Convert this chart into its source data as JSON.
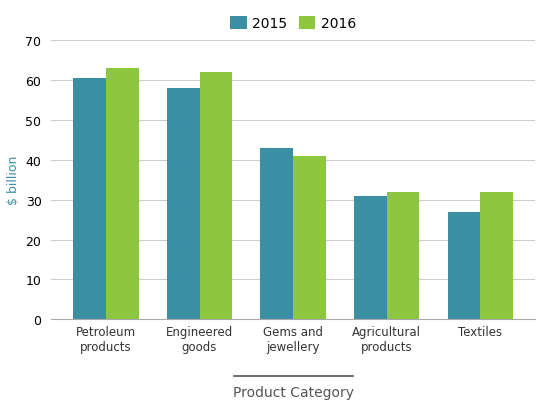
{
  "categories": [
    "Petroleum\nproducts",
    "Engineered\ngoods",
    "Gems and\njewellery",
    "Agricultural\nproducts",
    "Textiles"
  ],
  "values_2015": [
    60.5,
    58,
    43,
    31,
    27
  ],
  "values_2016": [
    63,
    62,
    41,
    32,
    32
  ],
  "color_2015": "#3a8fa3",
  "color_2016": "#8dc63f",
  "ylabel": "$ billion",
  "xlabel": "Product Category",
  "legend_labels": [
    "2015",
    "2016"
  ],
  "ylim": [
    0,
    70
  ],
  "yticks": [
    0,
    10,
    20,
    30,
    40,
    50,
    60,
    70
  ],
  "bar_width": 0.35,
  "figsize": [
    5.42,
    4.1
  ],
  "dpi": 100,
  "ylabel_color": "#3a8fa3",
  "xlabel_color": "#555555",
  "tick_label_color": "#333333",
  "grid_color": "#cccccc",
  "spine_color": "#aaaaaa"
}
